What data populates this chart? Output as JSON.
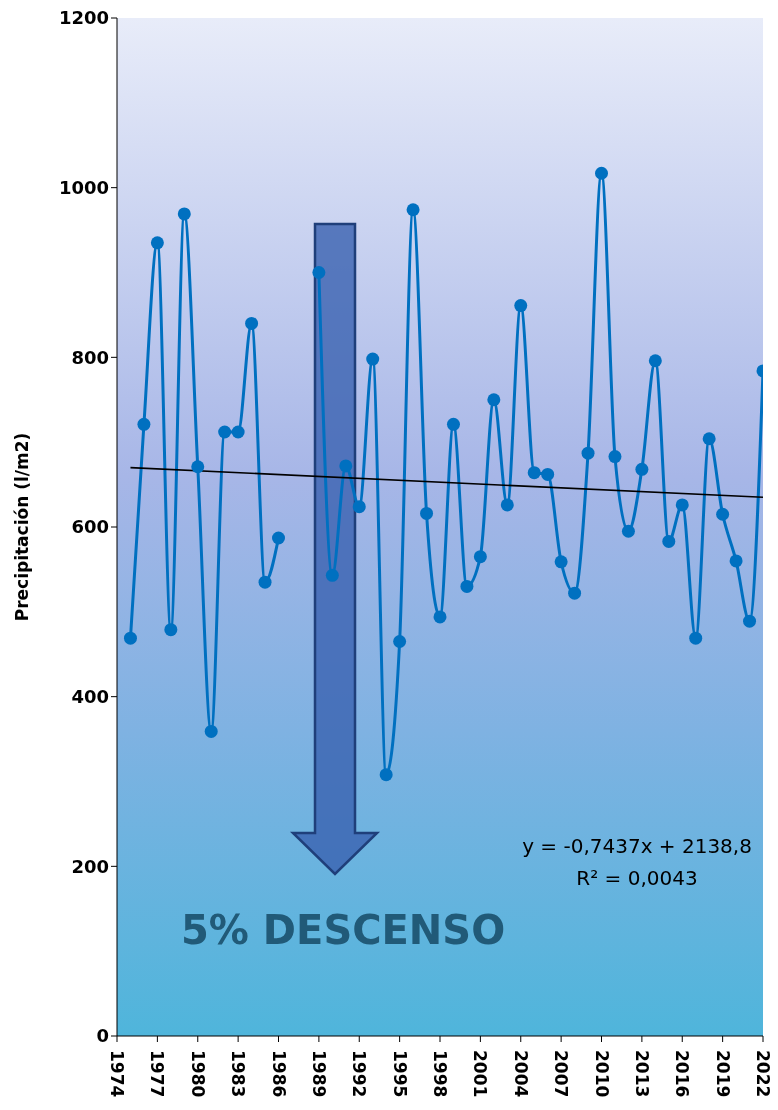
{
  "chart_data": {
    "type": "line",
    "ylabel": "Precipitación (l/m2)",
    "x": [
      1975,
      1976,
      1977,
      1978,
      1979,
      1980,
      1981,
      1982,
      1983,
      1984,
      1985,
      1986,
      1987,
      1988,
      1989,
      1990,
      1991,
      1992,
      1993,
      1994,
      1995,
      1996,
      1997,
      1998,
      1999,
      2000,
      2001,
      2002,
      2003,
      2004,
      2005,
      2006,
      2007,
      2008,
      2009,
      2010,
      2011,
      2012,
      2013,
      2014,
      2015,
      2016,
      2017,
      2018,
      2019,
      2020,
      2021,
      2022
    ],
    "series": [
      {
        "color": "#0070c0",
        "marker": "circle",
        "values": [
          469,
          721,
          935,
          479,
          969,
          671,
          359,
          712,
          712,
          840,
          535,
          587,
          null,
          null,
          900,
          543,
          672,
          624,
          798,
          308,
          465,
          974,
          616,
          494,
          721,
          530,
          565,
          750,
          626,
          861,
          664,
          662,
          559,
          522,
          687,
          1017,
          683,
          595,
          668,
          796,
          583,
          626,
          469,
          704,
          615,
          560,
          489,
          784
        ]
      },
      {
        "type": "line",
        "color": "#000000",
        "marker": "none",
        "x": [
          1975,
          2022
        ],
        "values": [
          670,
          635
        ]
      }
    ],
    "xlim": [
      1974,
      2022
    ],
    "xticks": [
      1974,
      1977,
      1980,
      1983,
      1986,
      1989,
      1992,
      1995,
      1998,
      2001,
      2004,
      2007,
      2010,
      2013,
      2016,
      2019,
      2022
    ],
    "ylim": [
      0,
      1200
    ],
    "yticks": [
      0,
      200,
      400,
      600,
      800,
      1000,
      1200
    ],
    "line_style": "solid",
    "annotations": [
      "y = -0,7437x + 2138,8",
      "R² = 0,0043",
      "5% DESCENSO"
    ]
  }
}
